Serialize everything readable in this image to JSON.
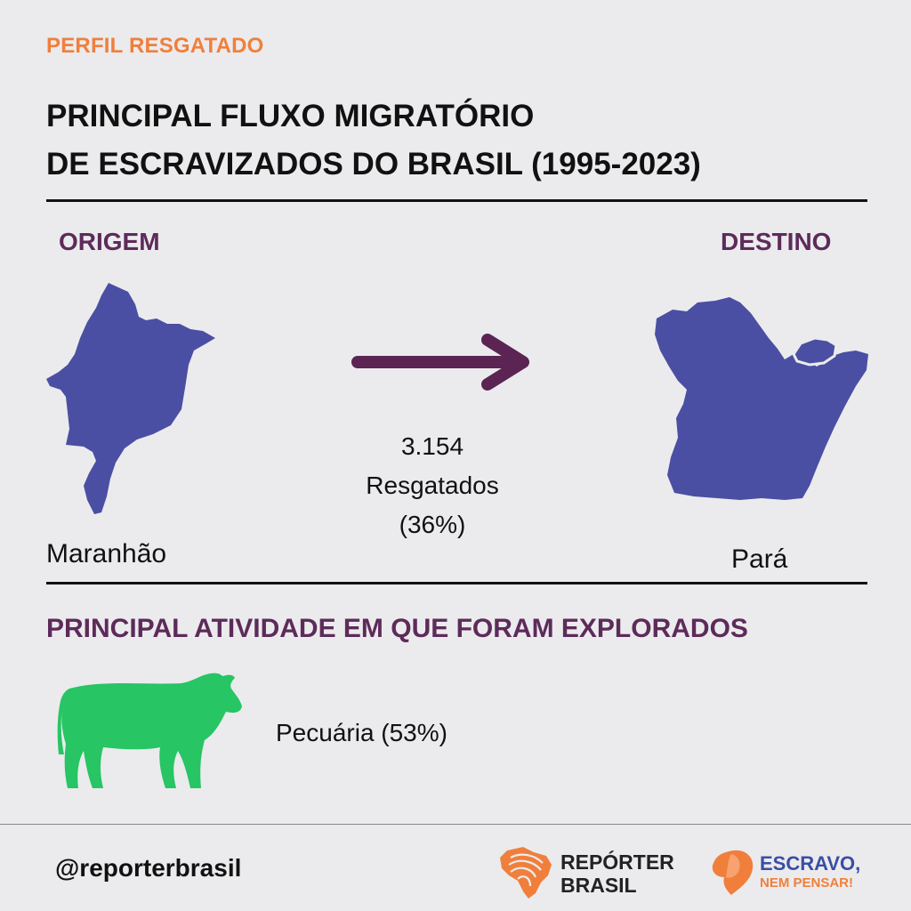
{
  "header": {
    "kicker": "PERFIL RESGATADO",
    "title_line1": "PRINCIPAL FLUXO MIGRATÓRIO",
    "title_line2": "DE ESCRAVIZADOS DO BRASIL (1995-2023)"
  },
  "flow": {
    "origin_label": "ORIGEM",
    "destination_label": "DESTINO",
    "origin_state": "Maranhão",
    "destination_state": "Pará",
    "count": "3.154",
    "count_label": "Resgatados",
    "share": "(36%)",
    "map_color": "#4a4fa3",
    "arrow_color": "#5b2453"
  },
  "activity": {
    "heading": "PRINCIPAL ATIVIDADE EM QUE FORAM EXPLORADOS",
    "icon": "cow-icon",
    "label": "Pecuária (53%)",
    "icon_color": "#27c564"
  },
  "footer": {
    "handle": "@reporterbrasil",
    "logo1_line1": "REPÓRTER",
    "logo1_line2": "BRASIL",
    "logo2_line1": "ESCRAVO,",
    "logo2_line2": "NEM PENSAR!",
    "orange": "#f07f3c",
    "blue": "#3a4ea6"
  }
}
